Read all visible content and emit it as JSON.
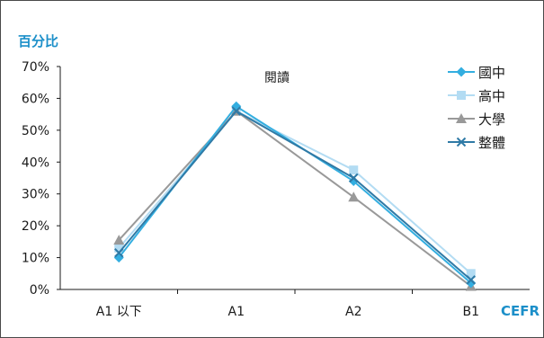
{
  "chart_data": {
    "type": "line",
    "title": "閱讀",
    "ylabel": "百分比",
    "xlabel": "CEFR",
    "categories": [
      "A1 以下",
      "A1",
      "A2",
      "B1"
    ],
    "ylim": [
      0,
      70
    ],
    "yticks": [
      0,
      10,
      20,
      30,
      40,
      50,
      60,
      70
    ],
    "ytick_labels": [
      "0%",
      "10%",
      "20%",
      "30%",
      "40%",
      "50%",
      "60%",
      "70%"
    ],
    "grid": false,
    "legend_position": "top-right",
    "series": [
      {
        "name": "國中",
        "values": [
          10,
          57.5,
          34,
          2
        ],
        "color": "#33aee0",
        "marker": "diamond"
      },
      {
        "name": "高中",
        "values": [
          13,
          56,
          37.5,
          5
        ],
        "color": "#b3dcf3",
        "marker": "square"
      },
      {
        "name": "大學",
        "values": [
          15.5,
          56,
          29,
          1
        ],
        "color": "#999999",
        "marker": "triangle"
      },
      {
        "name": "整體",
        "values": [
          11.5,
          56,
          35,
          3
        ],
        "color": "#2f7aa6",
        "marker": "x"
      }
    ]
  }
}
